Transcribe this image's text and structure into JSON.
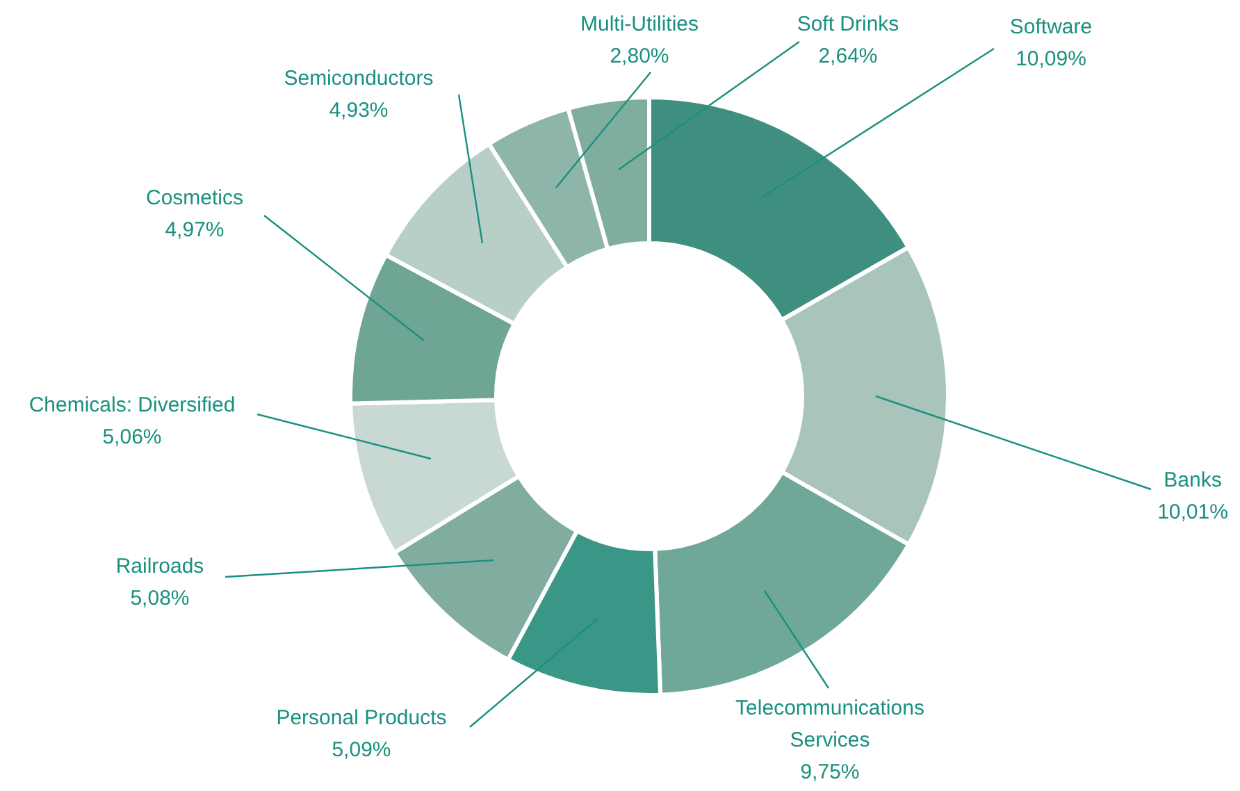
{
  "chart_data": {
    "type": "donut",
    "categories": [
      "Software",
      "Banks",
      "Telecommunications Services",
      "Personal Products",
      "Railroads",
      "Chemicals: Diversified",
      "Cosmetics",
      "Semiconductors",
      "Multi-Utilities",
      "Soft Drinks"
    ],
    "values": [
      10.09,
      10.01,
      9.75,
      5.09,
      5.08,
      5.06,
      4.97,
      4.93,
      2.8,
      2.64
    ],
    "colors": [
      "#3f8f80",
      "#a9c4bb",
      "#6fa898",
      "#3a9686",
      "#80ada0",
      "#c8d8d2",
      "#6ea594",
      "#b8cfc7",
      "#8db5a9",
      "#7fae9f"
    ],
    "value_labels": [
      "10,09%",
      "10,01%",
      "9,75%",
      "5,09%",
      "5,08%",
      "5,06%",
      "4,97%",
      "4,93%",
      "2,80%",
      "2,64%"
    ]
  }
}
